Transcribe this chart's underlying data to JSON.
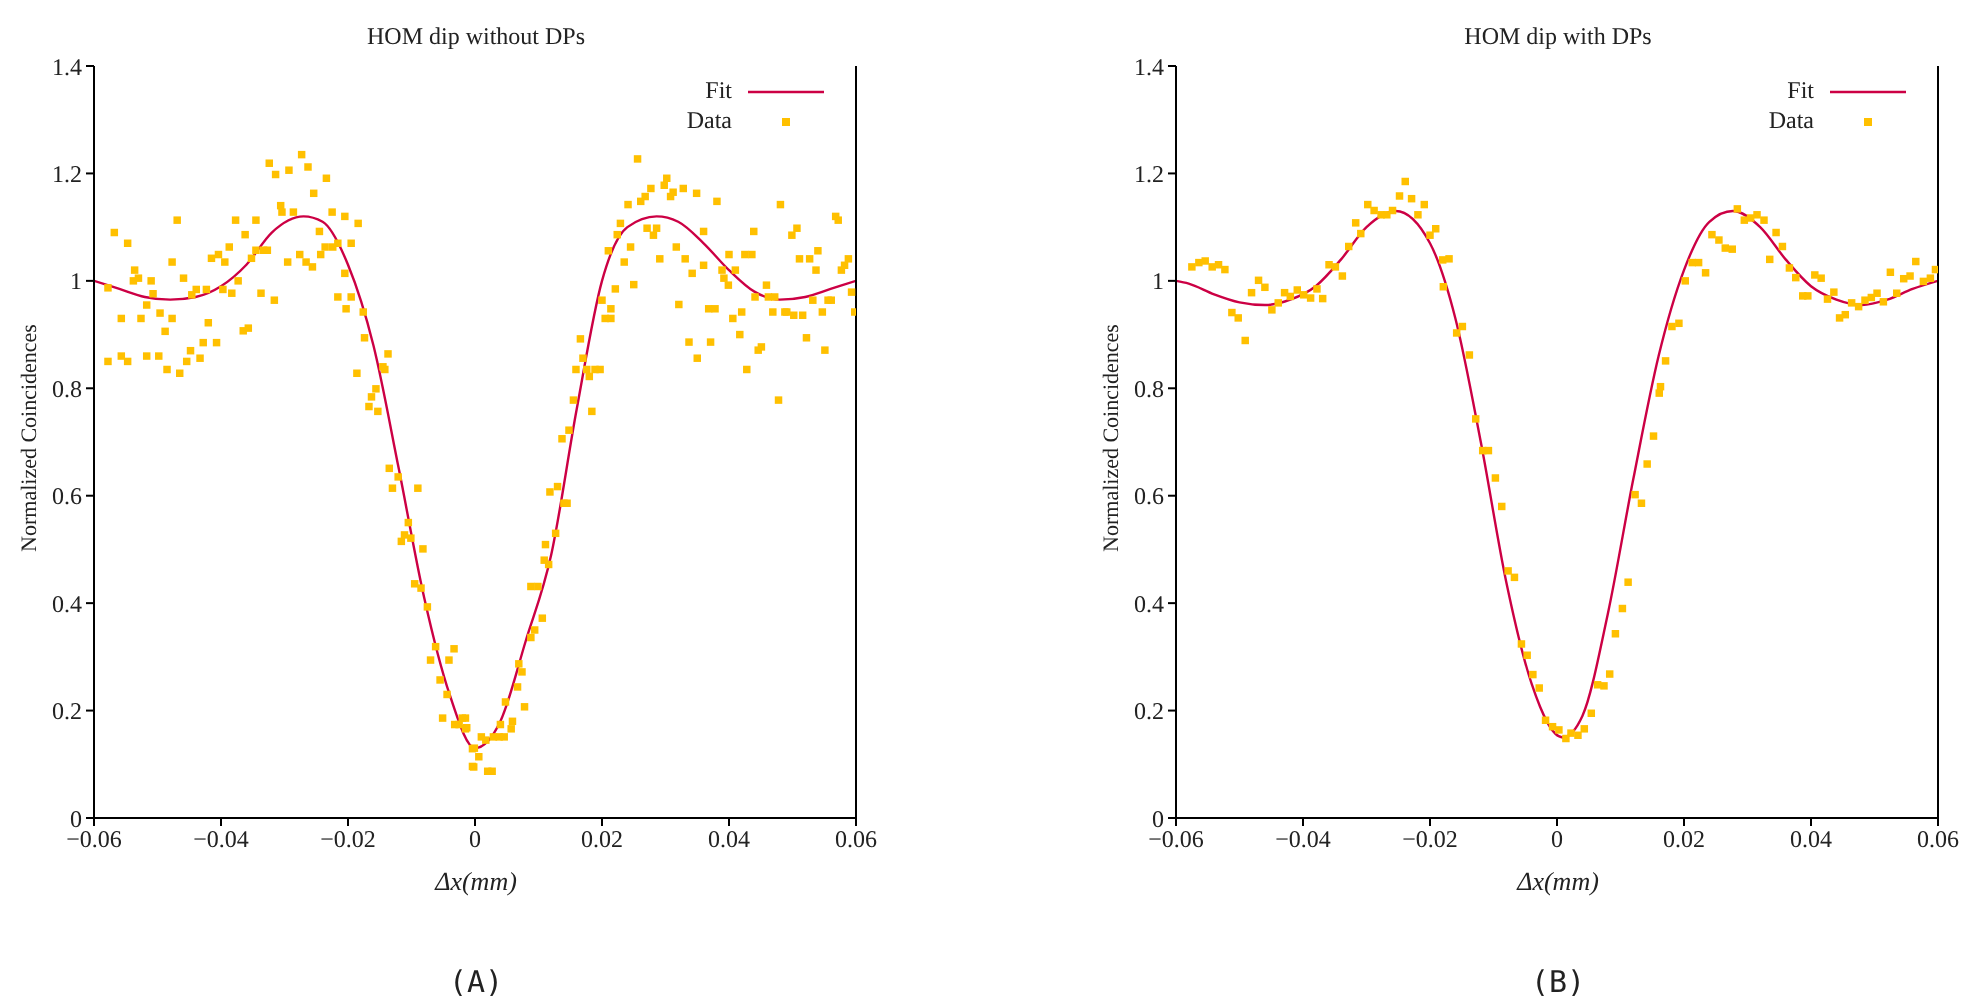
{
  "chart_data": [
    {
      "type": "line",
      "title": "HOM dip without DPs",
      "xlabel": "Δx(mm)",
      "ylabel": "Normalized Coincidences",
      "annotations": [
        "(A)"
      ],
      "xlim": [
        -0.06,
        0.06
      ],
      "xticks": [
        {
          "value": -0.06,
          "label": "−0.06"
        },
        {
          "value": -0.04,
          "label": "−0.04"
        },
        {
          "value": -0.02,
          "label": "−0.02"
        },
        0,
        0.02,
        0.04,
        0.06
      ],
      "ylim": [
        0,
        1.4
      ],
      "yticks": [
        0,
        0.2,
        0.4,
        0.6,
        0.8,
        1,
        1.2,
        1.4
      ],
      "legend": "top right",
      "series": [
        {
          "name": "Fit",
          "type": "line",
          "marker": "none",
          "color": "#cc0044",
          "x": [
            -0.06,
            -0.056,
            -0.052,
            -0.048,
            -0.044,
            -0.04,
            -0.036,
            -0.032,
            -0.027,
            -0.024,
            -0.02,
            -0.016,
            -0.012,
            -0.008,
            -0.004,
            0,
            0.004,
            0.008,
            0.012,
            0.016,
            0.02,
            0.024,
            0.0286,
            0.032,
            0.036,
            0.04,
            0.044,
            0.048,
            0.052,
            0.056,
            0.06
          ],
          "values": [
            1.0,
            0.985,
            0.97,
            0.965,
            0.97,
            0.99,
            1.03,
            1.09,
            1.12,
            1.11,
            1.03,
            0.88,
            0.65,
            0.41,
            0.23,
            0.13,
            0.18,
            0.33,
            0.49,
            0.76,
            1.0,
            1.1,
            1.12,
            1.11,
            1.07,
            1.02,
            0.98,
            0.965,
            0.97,
            0.985,
            1.0
          ]
        },
        {
          "name": "Data",
          "type": "scatter",
          "marker": "square",
          "color": "#ffc000",
          "x": [
            -0.0578,
            -0.0568,
            -0.0578,
            -0.0557,
            -0.0557,
            -0.0547,
            -0.0547,
            -0.0536,
            -0.0538,
            -0.053,
            -0.0526,
            -0.0517,
            -0.0517,
            -0.051,
            -0.0507,
            -0.0498,
            -0.0496,
            -0.0488,
            -0.0485,
            -0.0477,
            -0.0477,
            -0.0469,
            -0.0465,
            -0.0459,
            -0.0454,
            -0.0448,
            -0.0446,
            -0.0439,
            -0.0433,
            -0.0428,
            -0.0423,
            -0.042,
            -0.0415,
            -0.0407,
            -0.0404,
            -0.0397,
            -0.0394,
            -0.0387,
            -0.0383,
            -0.0377,
            -0.0373,
            -0.0365,
            -0.0362,
            -0.0357,
            -0.0352,
            -0.0345,
            -0.0345,
            -0.0337,
            -0.0333,
            -0.0324,
            -0.0327,
            -0.0316,
            -0.0314,
            -0.0306,
            -0.0304,
            -0.0295,
            -0.0293,
            -0.0286,
            -0.0276,
            -0.0273,
            -0.0266,
            -0.0263,
            -0.0256,
            -0.0254,
            -0.0245,
            -0.0243,
            -0.0236,
            -0.0234,
            -0.0225,
            -0.0224,
            -0.0216,
            -0.0216,
            -0.0205,
            -0.0205,
            -0.0203,
            -0.0195,
            -0.0195,
            -0.0184,
            -0.0186,
            -0.0176,
            -0.0174,
            -0.0167,
            -0.0163,
            -0.0156,
            -0.0153,
            -0.0145,
            -0.0142,
            -0.0137,
            -0.0135,
            -0.013,
            -0.0121,
            -0.0116,
            -0.0111,
            -0.0105,
            -0.0101,
            -0.0095,
            -0.009,
            -0.0085,
            -0.0082,
            -0.0075,
            -0.007,
            -0.0062,
            -0.0055,
            -0.0041,
            -0.0033,
            -0.0051,
            -0.0044,
            -0.0032,
            -0.0025,
            -0.0015,
            -0.0013,
            -0.0004,
            -0.0001,
            -0.002,
            -0.0015,
            -0.0004,
            -0.0002,
            0.0006,
            0.001,
            0.0017,
            0.002,
            0.0027,
            0.0029,
            0.0038,
            0.004,
            0.0046,
            0.0048,
            0.0057,
            0.0059,
            0.0067,
            0.0069,
            0.0074,
            0.0078,
            0.0088,
            0.0094,
            0.0088,
            0.0099,
            0.0106,
            0.0109,
            0.0111,
            0.0116,
            0.0118,
            0.0127,
            0.013,
            0.0137,
            0.014,
            0.0145,
            0.0148,
            0.0155,
            0.0159,
            0.0166,
            0.017,
            0.0176,
            0.018,
            0.0184,
            0.0189,
            0.0197,
            0.02,
            0.0205,
            0.0214,
            0.0214,
            0.021,
            0.0221,
            0.0224,
            0.0229,
            0.0235,
            0.0241,
            0.0245,
            0.025,
            0.0256,
            0.0261,
            0.0268,
            0.0271,
            0.0277,
            0.0281,
            0.0286,
            0.0291,
            0.0298,
            0.0302,
            0.0308,
            0.0312,
            0.0317,
            0.0321,
            0.0328,
            0.0331,
            0.0337,
            0.0342,
            0.0349,
            0.035,
            0.036,
            0.036,
            0.0368,
            0.0371,
            0.0378,
            0.0381,
            0.0389,
            0.0392,
            0.0399,
            0.04,
            0.0406,
            0.041,
            0.0417,
            0.042,
            0.0425,
            0.0428,
            0.0436,
            0.0439,
            0.0441,
            0.0446,
            0.0451,
            0.0459,
            0.0462,
            0.0469,
            0.0472,
            0.0478,
            0.0481,
            0.0488,
            0.0491,
            0.0499,
            0.0502,
            0.0507,
            0.0511,
            0.0516,
            0.0522,
            0.0527,
            0.0532,
            0.0537,
            0.054,
            0.0547,
            0.0551,
            0.0556,
            0.0561,
            0.0568,
            0.0572,
            0.0577,
            0.0582,
            0.0588,
            0.0593,
            0.0598
          ],
          "values": [
            0.987,
            1.09,
            0.85,
            0.93,
            0.86,
            1.07,
            0.85,
            1.02,
            1.0,
            1.005,
            0.93,
            0.86,
            0.955,
            1.0,
            0.976,
            0.86,
            0.94,
            0.906,
            0.835,
            1.035,
            0.93,
            1.113,
            0.828,
            1.005,
            0.85,
            0.87,
            0.974,
            0.984,
            0.856,
            0.885,
            0.984,
            0.922,
            1.042,
            0.885,
            1.049,
            0.984,
            1.035,
            1.063,
            0.977,
            1.113,
            1.0,
            0.907,
            1.086,
            0.912,
            1.042,
            1.113,
            1.057,
            0.977,
            1.057,
            1.219,
            1.057,
            0.964,
            1.198,
            1.14,
            1.128,
            1.035,
            1.206,
            1.128,
            1.049,
            1.235,
            1.035,
            1.212,
            1.026,
            1.163,
            1.092,
            1.049,
            1.063,
            1.191,
            1.128,
            1.063,
            1.07,
            0.97,
            1.12,
            1.014,
            0.948,
            1.07,
            0.97,
            1.107,
            0.828,
            0.942,
            0.894,
            0.766,
            0.784,
            0.799,
            0.757,
            0.84,
            0.835,
            0.864,
            0.651,
            0.614,
            0.635,
            0.515,
            0.527,
            0.55,
            0.521,
            0.436,
            0.614,
            0.428,
            0.501,
            0.393,
            0.294,
            0.319,
            0.257,
            0.294,
            0.315,
            0.186,
            0.23,
            0.174,
            0.174,
            0.186,
            0.168,
            0.096,
            0.13,
            0.186,
            0.166,
            0.129,
            0.095,
            0.114,
            0.151,
            0.145,
            0.087,
            0.087,
            0.151,
            0.151,
            0.174,
            0.151,
            0.216,
            0.166,
            0.18,
            0.244,
            0.287,
            0.272,
            0.207,
            0.336,
            0.35,
            0.431,
            0.431,
            0.372,
            0.48,
            0.509,
            0.472,
            0.607,
            0.53,
            0.617,
            0.706,
            0.586,
            0.586,
            0.722,
            0.778,
            0.835,
            0.892,
            0.856,
            0.835,
            0.822,
            0.757,
            0.835,
            0.835,
            0.964,
            0.93,
            0.93,
            0.948,
            1.056,
            0.985,
            1.086,
            1.107,
            1.035,
            1.142,
            1.063,
            0.993,
            1.227,
            1.148,
            1.157,
            1.098,
            1.172,
            1.085,
            1.098,
            1.041,
            1.178,
            1.191,
            1.157,
            1.165,
            1.063,
            0.956,
            1.172,
            1.041,
            0.886,
            1.014,
            1.163,
            0.856,
            1.092,
            1.029,
            0.948,
            0.886,
            0.948,
            1.148,
            1.02,
            1.005,
            0.992,
            1.049,
            0.93,
            1.02,
            0.9,
            0.942,
            1.049,
            0.835,
            1.049,
            1.092,
            0.97,
            0.871,
            0.877,
            0.992,
            0.97,
            0.942,
            0.97,
            0.778,
            1.142,
            0.942,
            0.942,
            1.085,
            0.936,
            1.098,
            1.041,
            0.936,
            0.894,
            1.041,
            0.964,
            1.02,
            1.056,
            0.942,
            0.871,
            0.964,
            0.964,
            1.12,
            1.113,
            1.02,
            1.029,
            1.041,
            0.979,
            0.942
          ]
        }
      ]
    },
    {
      "type": "line",
      "title": "HOM dip with DPs",
      "xlabel": "Δx(mm)",
      "ylabel": "Normalized Coincidences",
      "annotations": [
        "(B)"
      ],
      "xlim": [
        -0.06,
        0.06
      ],
      "xticks": [
        {
          "value": -0.06,
          "label": "−0.06"
        },
        {
          "value": -0.04,
          "label": "−0.04"
        },
        {
          "value": -0.02,
          "label": "−0.02"
        },
        0,
        0.02,
        0.04,
        0.06
      ],
      "ylim": [
        0,
        1.4
      ],
      "yticks": [
        0,
        0.2,
        0.4,
        0.6,
        0.8,
        1,
        1.2,
        1.4
      ],
      "legend": "top right",
      "series": [
        {
          "name": "Fit",
          "type": "line",
          "marker": "none",
          "color": "#cc0044",
          "x": [
            -0.06,
            -0.058,
            -0.054,
            -0.05,
            -0.046,
            -0.042,
            -0.038,
            -0.034,
            -0.03,
            -0.0254,
            -0.02,
            -0.016,
            -0.012,
            -0.008,
            -0.004,
            0.0009,
            0.004,
            0.008,
            0.012,
            0.016,
            0.02,
            0.024,
            0.0277,
            0.032,
            0.036,
            0.04,
            0.044,
            0.048,
            0.052,
            0.056,
            0.06
          ],
          "values": [
            1.0,
            0.995,
            0.975,
            0.96,
            0.955,
            0.965,
            0.99,
            1.04,
            1.1,
            1.13,
            1.07,
            0.93,
            0.7,
            0.44,
            0.25,
            0.15,
            0.19,
            0.38,
            0.63,
            0.86,
            1.02,
            1.11,
            1.13,
            1.1,
            1.04,
            0.99,
            0.965,
            0.955,
            0.965,
            0.985,
            1.0
          ]
        },
        {
          "name": "Data",
          "type": "scatter",
          "marker": "square",
          "color": "#ffc000",
          "x": [
            -0.0575,
            -0.0564,
            -0.0554,
            -0.0543,
            -0.0533,
            -0.0523,
            -0.0512,
            -0.0502,
            -0.0491,
            -0.0481,
            -0.047,
            -0.046,
            -0.0449,
            -0.0439,
            -0.0429,
            -0.042,
            -0.0409,
            -0.0399,
            -0.0388,
            -0.0378,
            -0.0369,
            -0.0359,
            -0.0349,
            -0.0338,
            -0.0328,
            -0.0317,
            -0.0309,
            -0.0298,
            -0.0288,
            -0.0277,
            -0.0268,
            -0.0259,
            -0.0248,
            -0.0239,
            -0.0229,
            -0.0219,
            -0.0209,
            -0.02,
            -0.0191,
            -0.018,
            -0.017,
            -0.0179,
            -0.0158,
            -0.0149,
            -0.0138,
            -0.0128,
            -0.0117,
            -0.0108,
            -0.0097,
            -0.0087,
            -0.0077,
            -0.0067,
            -0.0056,
            -0.0047,
            -0.0038,
            -0.0028,
            -0.0018,
            -0.0007,
            0.0003,
            0.0014,
            0.0022,
            0.0033,
            0.0043,
            0.0054,
            0.0064,
            0.0074,
            0.0083,
            0.0092,
            0.0103,
            0.0112,
            0.0123,
            0.0133,
            0.0142,
            0.0152,
            0.0161,
            0.0163,
            0.0171,
            0.0181,
            0.0192,
            0.0202,
            0.0213,
            0.0223,
            0.0234,
            0.0244,
            0.0255,
            0.0265,
            0.0276,
            0.0284,
            0.0295,
            0.0305,
            0.0315,
            0.0326,
            0.0335,
            0.0345,
            0.0355,
            0.0366,
            0.0376,
            0.0387,
            0.0395,
            0.0406,
            0.0416,
            0.0426,
            0.0436,
            0.0445,
            0.0454,
            0.0464,
            0.0475,
            0.0485,
            0.0495,
            0.0504,
            0.0514,
            0.0525,
            0.0535,
            0.0546,
            0.0556,
            0.0565,
            0.0577,
            0.0588,
            0.0596
          ],
          "values": [
            1.026,
            1.034,
            1.037,
            1.026,
            1.03,
            1.021,
            0.941,
            0.931,
            0.889,
            0.978,
            1.001,
            0.988,
            0.946,
            0.959,
            0.978,
            0.971,
            0.983,
            0.974,
            0.968,
            0.985,
            0.967,
            1.03,
            1.026,
            1.009,
            1.064,
            1.108,
            1.088,
            1.142,
            1.131,
            1.123,
            1.123,
            1.131,
            1.158,
            1.185,
            1.153,
            1.123,
            1.142,
            1.085,
            1.097,
            1.039,
            1.041,
            0.989,
            0.903,
            0.915,
            0.862,
            0.743,
            0.684,
            0.684,
            0.633,
            0.58,
            0.46,
            0.448,
            0.324,
            0.303,
            0.267,
            0.242,
            0.182,
            0.17,
            0.164,
            0.148,
            0.158,
            0.154,
            0.166,
            0.195,
            0.248,
            0.246,
            0.268,
            0.343,
            0.39,
            0.439,
            0.602,
            0.586,
            0.659,
            0.711,
            0.791,
            0.803,
            0.851,
            0.915,
            0.921,
            1.0,
            1.034,
            1.034,
            1.015,
            1.086,
            1.076,
            1.061,
            1.059,
            1.134,
            1.113,
            1.117,
            1.123,
            1.113,
            1.04,
            1.09,
            1.064,
            1.024,
            1.006,
            0.972,
            0.972,
            1.011,
            1.005,
            0.966,
            0.979,
            0.931,
            0.937,
            0.959,
            0.952,
            0.964,
            0.969,
            0.977,
            0.961,
            1.016,
            0.977,
            1.004,
            1.009,
            1.036,
            0.999,
            1.005,
            1.021
          ]
        }
      ]
    }
  ]
}
